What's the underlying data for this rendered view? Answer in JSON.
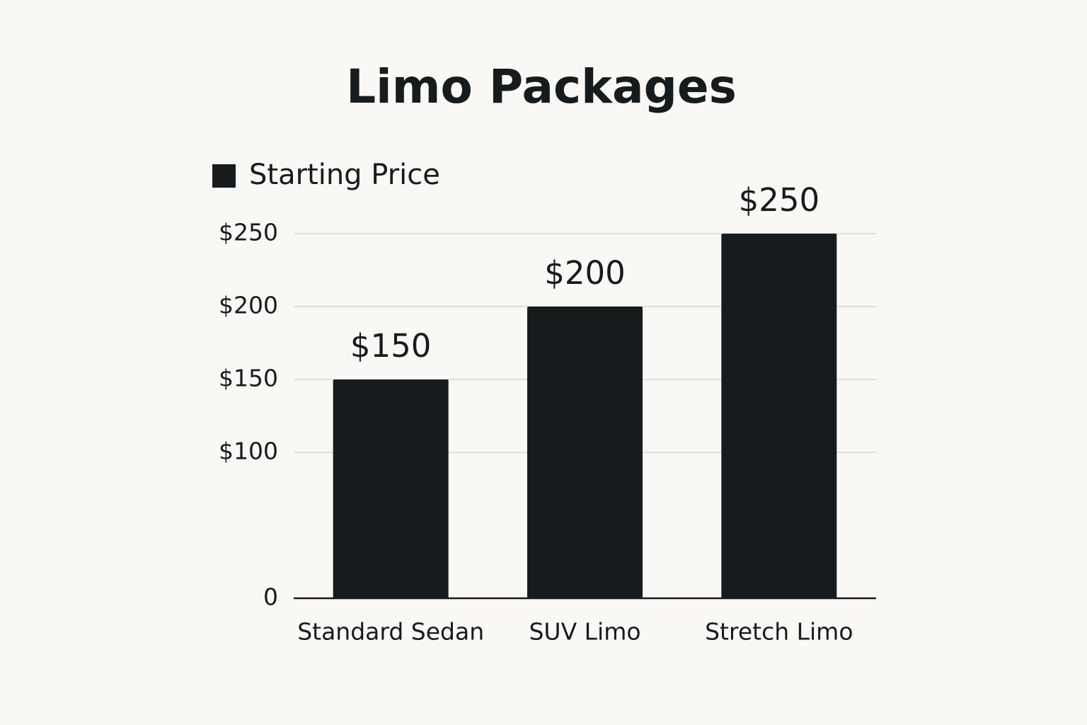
{
  "chart_data": {
    "type": "bar",
    "title": "Limo Packages",
    "categories": [
      "Standard Sedan",
      "SUV Limo",
      "Stretch Limo"
    ],
    "series": [
      {
        "name": "Starting Price",
        "color": "#161c1e",
        "values": [
          150,
          200,
          250
        ],
        "value_labels": [
          "$150",
          "$200",
          "$250"
        ]
      }
    ],
    "ylim": [
      0,
      250
    ],
    "yticks": [
      0,
      {
        "value": 100,
        "label": "$100"
      },
      {
        "value": 150,
        "label": "$150"
      },
      {
        "value": 200,
        "label": "$200"
      },
      {
        "value": 250,
        "label": "$250"
      }
    ],
    "grid": true,
    "legend": "top-left"
  }
}
